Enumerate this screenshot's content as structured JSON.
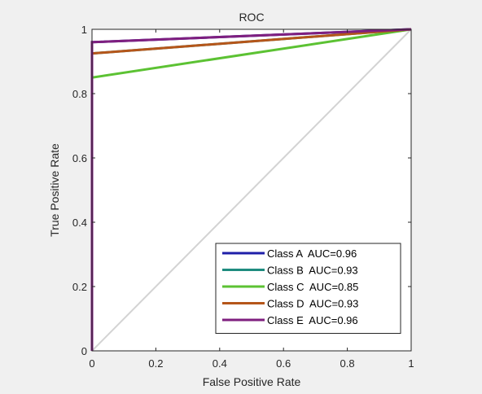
{
  "chart_data": {
    "type": "line",
    "title": "ROC",
    "xlabel": "False Positive Rate",
    "ylabel": "True Positive Rate",
    "xlim": [
      0,
      1
    ],
    "ylim": [
      0,
      1
    ],
    "xticks": [
      "0",
      "0.2",
      "0.4",
      "0.6",
      "0.8",
      "1"
    ],
    "yticks": [
      "0",
      "0.2",
      "0.4",
      "0.6",
      "0.8",
      "1"
    ],
    "grid": false,
    "legend_position": "bottom-right",
    "reference_line": {
      "x": [
        0,
        1
      ],
      "y": [
        0,
        1
      ],
      "color": "#d3d3d3"
    },
    "series": [
      {
        "name": "Class A  AUC=0.96",
        "color": "#1f1fa8",
        "x": [
          0,
          0,
          1
        ],
        "y": [
          0,
          0.96,
          1
        ]
      },
      {
        "name": "Class B  AUC=0.93",
        "color": "#1f8c7f",
        "x": [
          0,
          0,
          1
        ],
        "y": [
          0,
          0.925,
          1
        ]
      },
      {
        "name": "Class C  AUC=0.85",
        "color": "#5cc233",
        "x": [
          0,
          0,
          1
        ],
        "y": [
          0,
          0.85,
          1
        ]
      },
      {
        "name": "Class D  AUC=0.93",
        "color": "#b5561a",
        "x": [
          0,
          0,
          1
        ],
        "y": [
          0,
          0.925,
          1
        ]
      },
      {
        "name": "Class E  AUC=0.96",
        "color": "#7f1f7f",
        "x": [
          0,
          0,
          1
        ],
        "y": [
          0,
          0.96,
          1
        ]
      }
    ]
  }
}
